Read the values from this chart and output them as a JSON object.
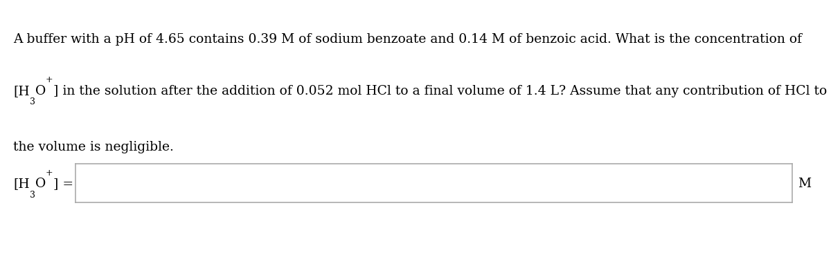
{
  "line1": "A buffer with a pH of 4.65 contains 0.39 M of sodium benzoate and 0.14 M of benzoic acid. What is the concentration of",
  "line2_rest": "] in the solution after the addition of 0.052 mol HCl to a final volume of 1.4 L? Assume that any contribution of HCl to",
  "line3": "the volume is negligible.",
  "unit": "M",
  "bg_color": "#ffffff",
  "text_color": "#000000",
  "border_color": "#aaaaaa",
  "font_size": 13.5,
  "sub_sup_size": 9.0,
  "fig_width": 12.0,
  "fig_height": 3.85,
  "dpi": 100
}
